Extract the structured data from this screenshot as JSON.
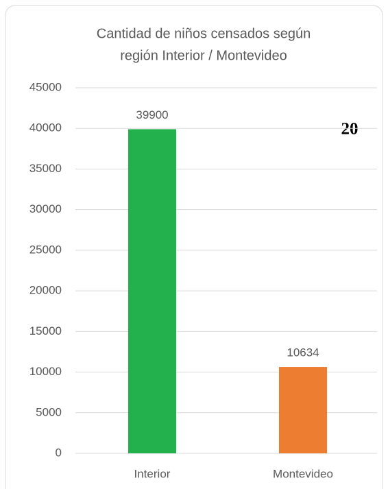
{
  "chart_data": {
    "type": "bar",
    "title": [
      "Cantidad de niños censados según",
      "región Interior / Montevideo"
    ],
    "categories": [
      "Interior",
      "Montevideo"
    ],
    "values": [
      39900,
      10634
    ],
    "colors": [
      "#22b14c",
      "#ed7d31"
    ],
    "ylim": [
      0,
      45000
    ],
    "yticks": [
      0,
      5000,
      10000,
      15000,
      20000,
      25000,
      30000,
      35000,
      40000,
      45000
    ],
    "grid": true,
    "annotation": "20"
  }
}
